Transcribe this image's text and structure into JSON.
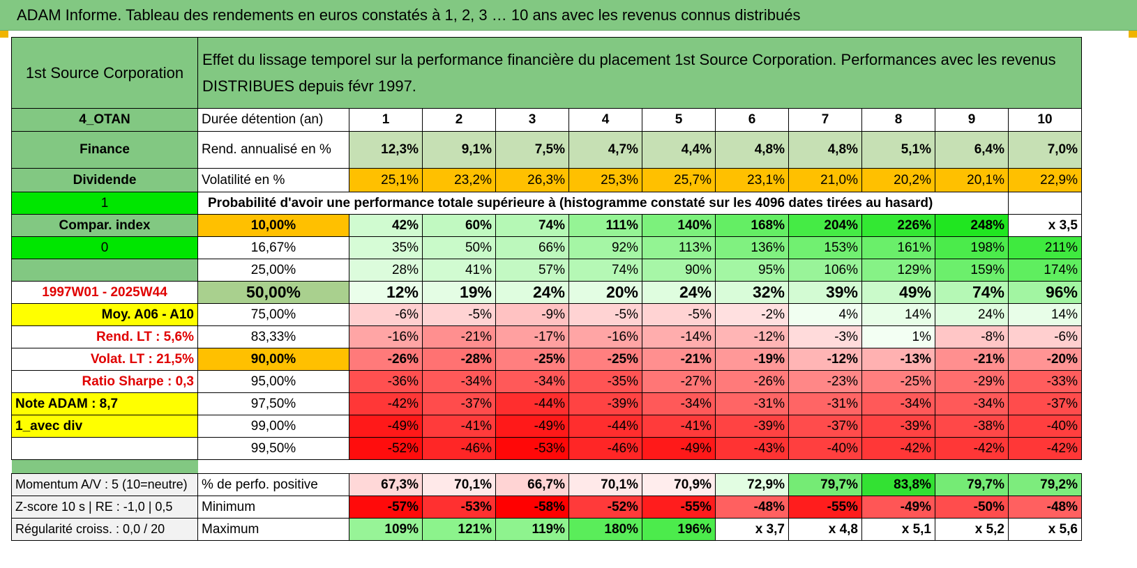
{
  "title": "ADAM Informe. Tableau des rendements en euros constatés à 1, 2, 3 … 10 ans avec les revenus connus distribués",
  "colors": {
    "header_green": "#82c882",
    "orange": "#ffc000",
    "yellow": "#ffff00",
    "bright_green": "#00e600",
    "red_text": "#e00000"
  },
  "company": "1st Source Corporation",
  "description": "Effet du lissage temporel sur la performance financière du placement 1st Source Corporation. Performances avec les revenus DISTRIBUES depuis févr 1997.",
  "left": {
    "code": "4_OTAN",
    "sector": "Finance",
    "type": "Dividende",
    "one": "1",
    "compar": "Compar. index",
    "zero": "0",
    "blank": "",
    "period": "1997W01 - 2025W44",
    "moy": "Moy. A06 - A10",
    "rend_lt": "Rend. LT :   5,6%",
    "volat_lt": "Volat. LT :   21,5%",
    "sharpe": "Ratio Sharpe :    0,3",
    "note": "Note ADAM : 8,7",
    "avec_div": "1_avec div"
  },
  "rows": {
    "duree": {
      "label": "Durée détention (an)",
      "values": [
        "1",
        "2",
        "3",
        "4",
        "5",
        "6",
        "7",
        "8",
        "9",
        "10"
      ]
    },
    "rend": {
      "label": "Rend. annualisé en %",
      "values": [
        "12,3%",
        "9,1%",
        "7,5%",
        "4,7%",
        "4,4%",
        "4,8%",
        "4,8%",
        "5,1%",
        "6,4%",
        "7,0%"
      ]
    },
    "vol": {
      "label": "Volatilité en %",
      "values": [
        "25,1%",
        "23,2%",
        "26,3%",
        "25,3%",
        "25,7%",
        "23,1%",
        "21,0%",
        "20,2%",
        "20,1%",
        "22,9%"
      ]
    }
  },
  "prob_title": "Probabilité d'avoir une performance totale supérieure à (histogramme constaté sur les 4096 dates tirées au hasard)",
  "percentiles": [
    {
      "pct": "10,00%",
      "values": [
        "42%",
        "60%",
        "74%",
        "111%",
        "140%",
        "168%",
        "204%",
        "226%",
        "248%",
        "x 3,5"
      ]
    },
    {
      "pct": "16,67%",
      "values": [
        "35%",
        "50%",
        "66%",
        "92%",
        "113%",
        "136%",
        "153%",
        "161%",
        "198%",
        "211%"
      ]
    },
    {
      "pct": "25,00%",
      "values": [
        "28%",
        "41%",
        "57%",
        "74%",
        "90%",
        "95%",
        "106%",
        "129%",
        "159%",
        "174%"
      ]
    },
    {
      "pct": "50,00%",
      "values": [
        "12%",
        "19%",
        "24%",
        "20%",
        "24%",
        "32%",
        "39%",
        "49%",
        "74%",
        "96%"
      ]
    },
    {
      "pct": "75,00%",
      "values": [
        "-6%",
        "-5%",
        "-9%",
        "-5%",
        "-5%",
        "-2%",
        "4%",
        "14%",
        "24%",
        "14%"
      ]
    },
    {
      "pct": "83,33%",
      "values": [
        "-16%",
        "-21%",
        "-17%",
        "-16%",
        "-14%",
        "-12%",
        "-3%",
        "1%",
        "-8%",
        "-6%"
      ]
    },
    {
      "pct": "90,00%",
      "values": [
        "-26%",
        "-28%",
        "-25%",
        "-25%",
        "-21%",
        "-19%",
        "-12%",
        "-13%",
        "-21%",
        "-20%"
      ]
    },
    {
      "pct": "95,00%",
      "values": [
        "-36%",
        "-34%",
        "-34%",
        "-35%",
        "-27%",
        "-26%",
        "-23%",
        "-25%",
        "-29%",
        "-33%"
      ]
    },
    {
      "pct": "97,50%",
      "values": [
        "-42%",
        "-37%",
        "-44%",
        "-39%",
        "-34%",
        "-31%",
        "-31%",
        "-34%",
        "-34%",
        "-37%"
      ]
    },
    {
      "pct": "99,00%",
      "values": [
        "-49%",
        "-41%",
        "-49%",
        "-44%",
        "-41%",
        "-39%",
        "-37%",
        "-39%",
        "-38%",
        "-40%"
      ]
    },
    {
      "pct": "99,50%",
      "values": [
        "-52%",
        "-46%",
        "-53%",
        "-46%",
        "-49%",
        "-43%",
        "-40%",
        "-42%",
        "-42%",
        "-42%"
      ]
    }
  ],
  "bottom": [
    {
      "left": "Momentum A/V : 5 (10=neutre)",
      "label": "% de perfo. positive",
      "values": [
        "67,3%",
        "70,1%",
        "66,7%",
        "70,1%",
        "70,9%",
        "72,9%",
        "79,7%",
        "83,8%",
        "79,7%",
        "79,2%"
      ]
    },
    {
      "left": "Z-score 10 s | RE : -1,0 | 0,5",
      "label": "Minimum",
      "values": [
        "-57%",
        "-53%",
        "-58%",
        "-52%",
        "-55%",
        "-48%",
        "-55%",
        "-49%",
        "-50%",
        "-48%"
      ]
    },
    {
      "left": "Régularité croiss. : 0,0 / 20",
      "label": "Maximum",
      "values": [
        "109%",
        "121%",
        "119%",
        "180%",
        "196%",
        "x 3,7",
        "x 4,8",
        "x 5,1",
        "x 5,2",
        "x 5,6"
      ]
    }
  ]
}
